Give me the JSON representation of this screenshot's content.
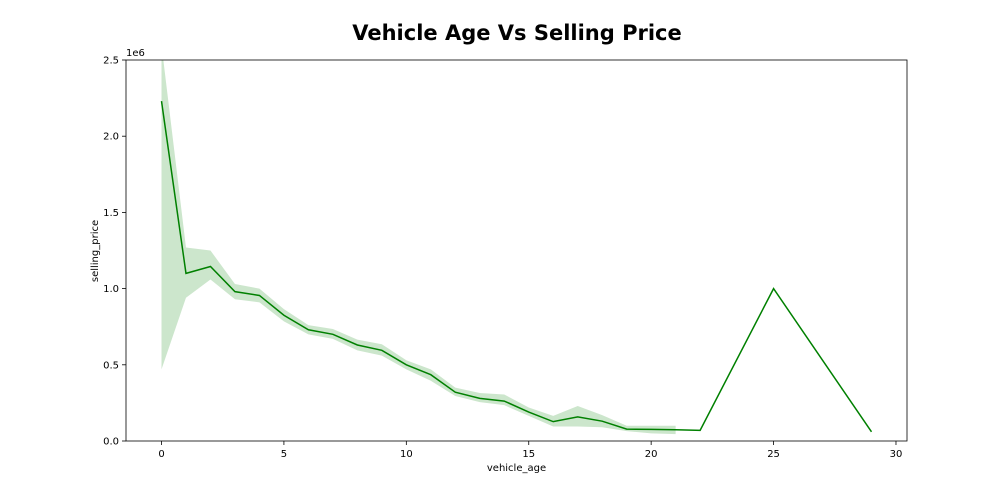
{
  "chart_data": {
    "type": "line",
    "title": "Vehicle Age Vs Selling Price",
    "xlabel": "vehicle_age",
    "ylabel": "selling_price",
    "y_scale_offset_label": "1e6",
    "xlim": [
      -1.45,
      30.45
    ],
    "ylim": [
      0,
      2500000
    ],
    "x_ticks": [
      0,
      5,
      10,
      15,
      20,
      25,
      30
    ],
    "x_tick_labels": [
      "0",
      "5",
      "10",
      "15",
      "20",
      "25",
      "30"
    ],
    "y_ticks": [
      0,
      500000,
      1000000,
      1500000,
      2000000,
      2500000
    ],
    "y_tick_labels": [
      "0.0",
      "0.5",
      "1.0",
      "1.5",
      "2.0",
      "2.5"
    ],
    "grid": false,
    "series": [
      {
        "color": "#008000",
        "x": [
          0,
          1,
          2,
          3,
          4,
          5,
          6,
          7,
          8,
          9,
          10,
          11,
          12,
          13,
          14,
          15,
          16,
          17,
          18,
          19,
          20,
          21,
          22,
          25,
          29
        ],
        "y": [
          2230000,
          1100000,
          1145000,
          980000,
          955000,
          825000,
          730000,
          700000,
          630000,
          595000,
          500000,
          435000,
          320000,
          280000,
          262000,
          190000,
          127000,
          158000,
          130000,
          78000,
          76000,
          74000,
          70000,
          1000000,
          60000
        ],
        "ci_x": [
          0,
          1,
          2,
          3,
          4,
          5,
          6,
          7,
          8,
          9,
          10,
          11,
          12,
          13,
          14,
          15,
          16,
          17,
          18,
          19,
          20,
          21
        ],
        "ci_lower": [
          470000,
          940000,
          1060000,
          930000,
          910000,
          785000,
          700000,
          670000,
          595000,
          560000,
          470000,
          395000,
          295000,
          255000,
          235000,
          165000,
          95000,
          95000,
          90000,
          65000,
          50000,
          45000
        ],
        "ci_upper": [
          2600000,
          1270000,
          1250000,
          1030000,
          1000000,
          865000,
          760000,
          735000,
          665000,
          635000,
          530000,
          470000,
          350000,
          315000,
          305000,
          220000,
          165000,
          230000,
          170000,
          100000,
          100000,
          100000
        ],
        "ci_color": "#008000"
      }
    ]
  }
}
